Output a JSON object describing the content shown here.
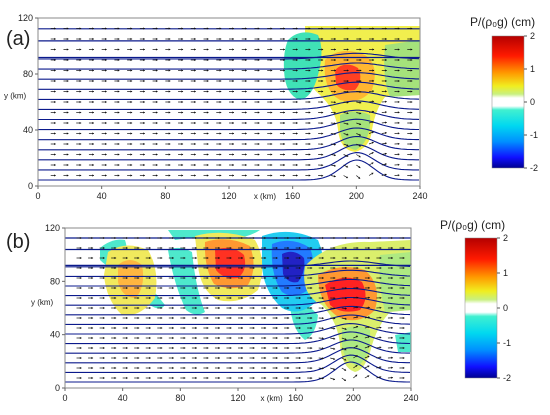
{
  "panels": [
    {
      "label": "(a)",
      "x_ticks": [
        "0",
        "40",
        "80",
        "120",
        "160",
        "200",
        "240"
      ],
      "y_ticks": [
        "0",
        "40",
        "80",
        "120"
      ],
      "xlabel": "x (km)",
      "ylabel": "y (km)"
    },
    {
      "label": "(b)",
      "x_ticks": [
        "0",
        "40",
        "80",
        "120",
        "160",
        "200",
        "240"
      ],
      "y_ticks": [
        "0",
        "40",
        "80",
        "120"
      ],
      "xlabel": "x (km)",
      "ylabel": "y (km)"
    }
  ],
  "colorbars": [
    {
      "title": "P/(ρ₀g) (cm)",
      "ticks": [
        "2",
        "1",
        "0",
        "-1",
        "-2"
      ]
    },
    {
      "title": "P/(ρ₀g) (cm)",
      "ticks": [
        "2",
        "1",
        "0",
        "-1",
        "-2"
      ]
    }
  ],
  "colors": {
    "streamline": "#0b1a8c",
    "frame": "#888888",
    "arrow": "#111111"
  }
}
